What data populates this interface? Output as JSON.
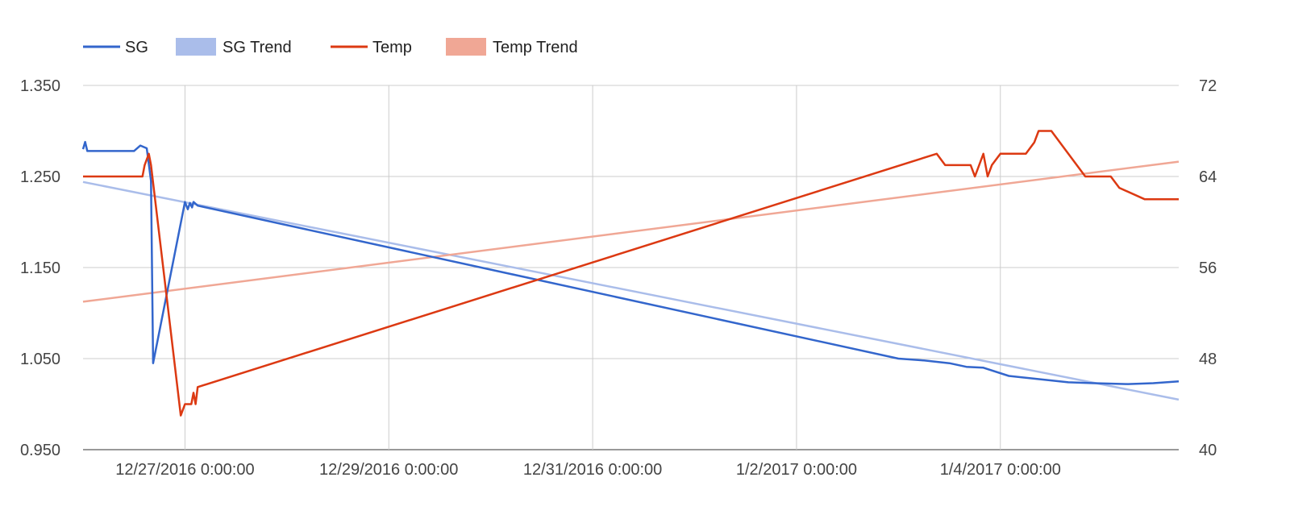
{
  "chart_data": {
    "type": "line",
    "title": "",
    "xlabel": "",
    "ylabel": "",
    "y2label": "",
    "xlim": [
      "12/26/2016 0:00:00",
      "1/5/2017 18:00:00"
    ],
    "ylim": [
      0.95,
      1.35
    ],
    "y2lim": [
      40,
      72
    ],
    "x_ticks": [
      "12/27/2016 0:00:00",
      "12/29/2016 0:00:00",
      "12/31/2016 0:00:00",
      "1/2/2017 0:00:00",
      "1/4/2017 0:00:00"
    ],
    "y_ticks": [
      "0.950",
      "1.050",
      "1.150",
      "1.250",
      "1.350"
    ],
    "y2_ticks": [
      "40",
      "48",
      "56",
      "64",
      "72"
    ],
    "grid": true,
    "legend_position": "top-left",
    "series": [
      {
        "name": "SG",
        "axis": "left",
        "color": "#3366cc",
        "style": "line",
        "points": [
          [
            "12/26/2016 0:00:00",
            1.28
          ],
          [
            "12/26/2016 0:30:00",
            1.288
          ],
          [
            "12/26/2016 1:00:00",
            1.278
          ],
          [
            "12/26/2016 12:00:00",
            1.278
          ],
          [
            "12/26/2016 13:30:00",
            1.284
          ],
          [
            "12/26/2016 15:00:00",
            1.281
          ],
          [
            "12/26/2016 16:00:00",
            1.245
          ],
          [
            "12/26/2016 16:30:00",
            1.045
          ],
          [
            "12/27/2016 0:00:00",
            1.222
          ],
          [
            "12/27/2016 0:40:00",
            1.214
          ],
          [
            "12/27/2016 1:10:00",
            1.221
          ],
          [
            "12/27/2016 1:40:00",
            1.216
          ],
          [
            "12/27/2016 2:00:00",
            1.222
          ],
          [
            "12/27/2016 3:00:00",
            1.218
          ],
          [
            "1/3/2017 0:00:00",
            1.05
          ],
          [
            "1/3/2017 6:00:00",
            1.048
          ],
          [
            "1/3/2017 12:00:00",
            1.045
          ],
          [
            "1/3/2017 16:00:00",
            1.041
          ],
          [
            "1/3/2017 20:00:00",
            1.04
          ],
          [
            "1/4/2017 2:00:00",
            1.031
          ],
          [
            "1/4/2017 8:00:00",
            1.028
          ],
          [
            "1/4/2017 16:00:00",
            1.024
          ],
          [
            "1/4/2017 22:00:00",
            1.023
          ],
          [
            "1/5/2017 6:00:00",
            1.022
          ],
          [
            "1/5/2017 12:00:00",
            1.023
          ],
          [
            "1/5/2017 18:00:00",
            1.025
          ]
        ]
      },
      {
        "name": "SG Trend",
        "axis": "left",
        "color": "#aabdea",
        "style": "trend",
        "points": [
          [
            "12/26/2016 0:00:00",
            1.244
          ],
          [
            "1/5/2017 18:00:00",
            1.005
          ]
        ]
      },
      {
        "name": "Temp",
        "axis": "right",
        "color": "#dc3912",
        "style": "line",
        "points": [
          [
            "12/26/2016 0:00:00",
            64
          ],
          [
            "12/26/2016 14:00:00",
            64
          ],
          [
            "12/26/2016 14:30:00",
            65
          ],
          [
            "12/26/2016 15:30:00",
            66
          ],
          [
            "12/26/2016 16:00:00",
            65
          ],
          [
            "12/26/2016 23:00:00",
            43
          ],
          [
            "12/27/2016 0:00:00",
            44
          ],
          [
            "12/27/2016 1:30:00",
            44
          ],
          [
            "12/27/2016 2:00:00",
            45
          ],
          [
            "12/27/2016 2:30:00",
            44
          ],
          [
            "12/27/2016 3:00:00",
            45.5
          ],
          [
            "1/3/2017 9:00:00",
            66
          ],
          [
            "1/3/2017 11:00:00",
            65
          ],
          [
            "1/3/2017 17:00:00",
            65
          ],
          [
            "1/3/2017 18:00:00",
            64
          ],
          [
            "1/3/2017 20:00:00",
            66
          ],
          [
            "1/3/2017 21:00:00",
            64
          ],
          [
            "1/3/2017 22:00:00",
            65
          ],
          [
            "1/4/2017 0:00:00",
            66
          ],
          [
            "1/4/2017 6:00:00",
            66
          ],
          [
            "1/4/2017 8:00:00",
            67
          ],
          [
            "1/4/2017 9:00:00",
            68
          ],
          [
            "1/4/2017 12:00:00",
            68
          ],
          [
            "1/4/2017 20:00:00",
            64
          ],
          [
            "1/5/2017 2:00:00",
            64
          ],
          [
            "1/5/2017 4:00:00",
            63
          ],
          [
            "1/5/2017 10:00:00",
            62
          ],
          [
            "1/5/2017 18:00:00",
            62
          ]
        ]
      },
      {
        "name": "Temp Trend",
        "axis": "right",
        "color": "#f0a795",
        "style": "trend",
        "points": [
          [
            "12/26/2016 0:00:00",
            53
          ],
          [
            "1/5/2017 18:00:00",
            65.3
          ]
        ]
      }
    ]
  }
}
